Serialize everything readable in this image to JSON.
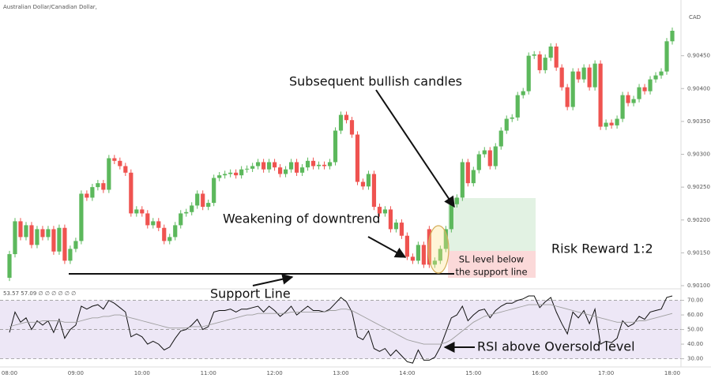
{
  "chart_data": [
    {
      "type": "candlestick",
      "title": "Australian Dollar/Canadian Dollar,",
      "price_label": "CAD",
      "categories": [
        "08:00",
        null,
        null,
        null,
        null,
        null,
        null,
        null,
        null,
        null,
        null,
        null,
        "09:00",
        null,
        null,
        null,
        null,
        null,
        null,
        null,
        null,
        null,
        null,
        null,
        "10:00",
        null,
        null,
        null,
        null,
        null,
        null,
        null,
        null,
        null,
        null,
        null,
        "11:00",
        null,
        null,
        null,
        null,
        null,
        null,
        null,
        null,
        null,
        null,
        null,
        "12:00",
        null,
        null,
        null,
        null,
        null,
        null,
        null,
        null,
        null,
        null,
        null,
        "13:00",
        null,
        null,
        null,
        null,
        null,
        null,
        null,
        null,
        null,
        null,
        null,
        "14:00",
        null,
        null,
        null,
        null,
        null,
        null,
        null,
        null,
        null,
        null,
        null,
        "15:00",
        null,
        null,
        null,
        null,
        null,
        null,
        null,
        null,
        null,
        null,
        null,
        "16:00",
        null,
        null,
        null,
        null,
        null,
        null,
        null,
        null,
        null,
        null,
        null,
        "17:00",
        null,
        null,
        null,
        null,
        null,
        null,
        null,
        null,
        null,
        null,
        null,
        "18:00"
      ],
      "open": [
        0.90112,
        0.90148,
        0.90198,
        0.90174,
        0.90192,
        0.90162,
        0.90186,
        0.90174,
        0.90186,
        0.90152,
        0.90188,
        0.90138,
        0.90156,
        0.90168,
        0.9024,
        0.90234,
        0.9025,
        0.90256,
        0.90246,
        0.90294,
        0.9029,
        0.90282,
        0.90272,
        0.9021,
        0.90216,
        0.9021,
        0.90192,
        0.90198,
        0.90188,
        0.90168,
        0.90174,
        0.90192,
        0.9021,
        0.90212,
        0.90222,
        0.9024,
        0.9022,
        0.90226,
        0.90264,
        0.90268,
        0.9027,
        0.90272,
        0.90268,
        0.90277,
        0.90278,
        0.90282,
        0.90288,
        0.90277,
        0.90288,
        0.9028,
        0.9027,
        0.90277,
        0.90288,
        0.90272,
        0.9028,
        0.9029,
        0.90282,
        0.90284,
        0.90282,
        0.90288,
        0.90336,
        0.9036,
        0.90352,
        0.9033,
        0.90258,
        0.90251,
        0.9027,
        0.9022,
        0.9021,
        0.90216,
        0.90186,
        0.90196,
        0.90176,
        0.90144,
        0.90138,
        0.90162,
        0.90186,
        0.90132,
        0.90138,
        0.90156,
        0.90186,
        0.90224,
        0.90234,
        0.90288,
        0.90256,
        0.90276,
        0.903,
        0.90306,
        0.90282,
        0.90312,
        0.90336,
        0.90354,
        0.90356,
        0.9039,
        0.90396,
        0.9045,
        0.90452,
        0.90428,
        0.90447,
        0.90464,
        0.90432,
        0.90402,
        0.90372,
        0.90426,
        0.90414,
        0.90432,
        0.90402,
        0.90438,
        0.90342,
        0.90348,
        0.90344,
        0.90354,
        0.9039,
        0.90378,
        0.90384,
        0.90402,
        0.90396,
        0.90414,
        0.9042,
        0.90426,
        0.90472
      ],
      "high": [
        0.90153,
        0.90203,
        0.90203,
        0.90197,
        0.90197,
        0.90191,
        0.90191,
        0.90191,
        0.90191,
        0.90193,
        0.90193,
        0.90161,
        0.90173,
        0.90245,
        0.90245,
        0.90255,
        0.90261,
        0.90261,
        0.90299,
        0.90299,
        0.90295,
        0.90287,
        0.90277,
        0.90221,
        0.90221,
        0.90215,
        0.90203,
        0.90203,
        0.90193,
        0.90179,
        0.90197,
        0.90215,
        0.90217,
        0.90227,
        0.90245,
        0.90245,
        0.90231,
        0.90269,
        0.90273,
        0.90275,
        0.90277,
        0.90277,
        0.90282,
        0.90283,
        0.90287,
        0.90293,
        0.90293,
        0.90293,
        0.90293,
        0.90285,
        0.90282,
        0.90293,
        0.90293,
        0.90285,
        0.90295,
        0.90295,
        0.90289,
        0.90289,
        0.90293,
        0.90341,
        0.90365,
        0.90365,
        0.90357,
        0.90335,
        0.90263,
        0.90275,
        0.90275,
        0.90225,
        0.90221,
        0.90221,
        0.90201,
        0.90201,
        0.90181,
        0.90149,
        0.90167,
        0.90167,
        0.90191,
        0.90143,
        0.90161,
        0.90191,
        0.90229,
        0.90239,
        0.90293,
        0.90293,
        0.90281,
        0.90305,
        0.90311,
        0.90311,
        0.90317,
        0.90341,
        0.90359,
        0.90361,
        0.90395,
        0.90401,
        0.90455,
        0.90457,
        0.90457,
        0.90452,
        0.90469,
        0.90469,
        0.90437,
        0.90407,
        0.90431,
        0.90431,
        0.90437,
        0.90437,
        0.90443,
        0.90443,
        0.90353,
        0.90353,
        0.90359,
        0.90395,
        0.90395,
        0.90389,
        0.90407,
        0.90407,
        0.90419,
        0.90425,
        0.90431,
        0.90477,
        0.90493
      ],
      "low": [
        0.90107,
        0.90143,
        0.90169,
        0.90169,
        0.90157,
        0.90157,
        0.90169,
        0.90169,
        0.90147,
        0.90147,
        0.90133,
        0.90133,
        0.90151,
        0.90163,
        0.90229,
        0.90229,
        0.90245,
        0.90241,
        0.90241,
        0.90285,
        0.90277,
        0.90267,
        0.90205,
        0.90205,
        0.90205,
        0.90187,
        0.90187,
        0.90183,
        0.90163,
        0.90163,
        0.90169,
        0.90187,
        0.90205,
        0.90207,
        0.90217,
        0.90215,
        0.90215,
        0.90221,
        0.90259,
        0.90263,
        0.90265,
        0.90263,
        0.90263,
        0.90272,
        0.90273,
        0.90277,
        0.90272,
        0.90272,
        0.90275,
        0.90265,
        0.90265,
        0.90272,
        0.90267,
        0.90267,
        0.90275,
        0.90277,
        0.90277,
        0.90277,
        0.90277,
        0.90283,
        0.90331,
        0.90347,
        0.90325,
        0.90253,
        0.90246,
        0.90246,
        0.90215,
        0.90205,
        0.90205,
        0.90181,
        0.90181,
        0.90171,
        0.90139,
        0.90133,
        0.90133,
        0.90127,
        0.90127,
        0.90127,
        0.90133,
        0.90151,
        0.90181,
        0.90219,
        0.90229,
        0.90251,
        0.90251,
        0.90271,
        0.90295,
        0.90277,
        0.90277,
        0.90307,
        0.90331,
        0.90349,
        0.90351,
        0.90385,
        0.90391,
        0.90445,
        0.90423,
        0.90423,
        0.90442,
        0.90427,
        0.90397,
        0.90367,
        0.90367,
        0.90409,
        0.90409,
        0.90397,
        0.90397,
        0.90337,
        0.90337,
        0.90339,
        0.90339,
        0.90349,
        0.90373,
        0.90373,
        0.90379,
        0.90391,
        0.90391,
        0.90409,
        0.90415,
        0.90421,
        0.90467
      ],
      "close": [
        0.90148,
        0.90198,
        0.90174,
        0.90192,
        0.90162,
        0.90186,
        0.90174,
        0.90186,
        0.90152,
        0.90188,
        0.90138,
        0.90156,
        0.90168,
        0.9024,
        0.90234,
        0.9025,
        0.90256,
        0.90246,
        0.90294,
        0.9029,
        0.90282,
        0.90272,
        0.9021,
        0.90216,
        0.9021,
        0.90192,
        0.90198,
        0.90188,
        0.90168,
        0.90174,
        0.90192,
        0.9021,
        0.90212,
        0.90222,
        0.9024,
        0.9022,
        0.90226,
        0.90264,
        0.90268,
        0.9027,
        0.90272,
        0.90268,
        0.90277,
        0.90278,
        0.90282,
        0.90288,
        0.90277,
        0.90288,
        0.9028,
        0.9027,
        0.90277,
        0.90288,
        0.90272,
        0.9028,
        0.9029,
        0.90282,
        0.90284,
        0.90282,
        0.90288,
        0.90336,
        0.9036,
        0.90352,
        0.9033,
        0.90258,
        0.90251,
        0.9027,
        0.9022,
        0.9021,
        0.90216,
        0.90186,
        0.90196,
        0.90176,
        0.90144,
        0.90138,
        0.90162,
        0.90132,
        0.90132,
        0.90138,
        0.90156,
        0.90186,
        0.90224,
        0.90234,
        0.90288,
        0.90256,
        0.90276,
        0.903,
        0.90306,
        0.90282,
        0.90312,
        0.90336,
        0.90354,
        0.90356,
        0.9039,
        0.90396,
        0.9045,
        0.90452,
        0.90428,
        0.90447,
        0.90464,
        0.90432,
        0.90402,
        0.90372,
        0.90426,
        0.90414,
        0.90432,
        0.90402,
        0.90438,
        0.90342,
        0.90348,
        0.90344,
        0.90354,
        0.9039,
        0.90378,
        0.90384,
        0.90402,
        0.90396,
        0.90414,
        0.9042,
        0.90426,
        0.90472,
        0.90488
      ],
      "up_color": "#5cb85c",
      "down_color": "#ef5350",
      "ylim": [
        0.901,
        0.905
      ],
      "yticks": [
        {
          "value": 0.901,
          "label": "0.90100"
        },
        {
          "value": 0.9015,
          "label": "0.90150"
        },
        {
          "value": 0.902,
          "label": "0.90200"
        },
        {
          "value": 0.9025,
          "label": "0.90250"
        },
        {
          "value": 0.903,
          "label": "0.90300"
        },
        {
          "value": 0.9035,
          "label": "0.90350"
        },
        {
          "value": 0.904,
          "label": "0.90400"
        },
        {
          "value": 0.9045,
          "label": "0.90450"
        }
      ],
      "grid": false,
      "annotations": [
        "Subsequent bullish candles",
        "Weakening of downtrend",
        "Support Line",
        "Risk Reward 1:2",
        "SL level below",
        "the support line",
        "RSI above Oversold level"
      ]
    },
    {
      "type": "line",
      "header": "53.57  57.09  ∅ ∅ ∅ ∅ ∅ ∅",
      "series": [
        {
          "color": "#111111",
          "values": [
            48,
            62,
            55,
            58,
            50,
            56,
            53,
            56,
            48,
            57,
            44,
            50,
            53,
            66,
            64,
            66,
            67,
            64,
            70,
            68,
            65,
            62,
            45,
            47,
            45,
            40,
            42,
            40,
            36,
            38,
            44,
            49,
            50,
            53,
            57,
            50,
            52,
            62,
            63,
            63,
            64,
            62,
            64,
            64,
            65,
            66,
            62,
            66,
            63,
            59,
            62,
            66,
            60,
            63,
            66,
            63,
            63,
            62,
            64,
            68,
            72,
            69,
            62,
            45,
            43,
            49,
            37,
            35,
            37,
            32,
            36,
            32,
            28,
            27,
            36,
            29,
            29,
            31,
            38,
            48,
            58,
            60,
            66,
            56,
            60,
            63,
            64,
            58,
            63,
            66,
            68,
            68,
            70,
            71,
            73,
            73,
            65,
            69,
            72,
            62,
            54,
            47,
            62,
            58,
            63,
            54,
            64,
            40,
            42,
            41,
            44,
            56,
            52,
            54,
            59,
            57,
            62,
            63,
            64,
            72,
            73
          ]
        },
        {
          "color": "#9e9e9e",
          "values": [
            52,
            53,
            54,
            55,
            55,
            55,
            56,
            56,
            56,
            56,
            55,
            55,
            55,
            56,
            57,
            58,
            58,
            59,
            59,
            60,
            60,
            59,
            58,
            57,
            56,
            55,
            54,
            53,
            52,
            51,
            51,
            51,
            51,
            52,
            52,
            52,
            53,
            54,
            55,
            56,
            57,
            58,
            59,
            60,
            60,
            61,
            61,
            61,
            61,
            61,
            61,
            62,
            62,
            62,
            62,
            62,
            62,
            62,
            63,
            63,
            64,
            64,
            63,
            61,
            59,
            57,
            55,
            53,
            51,
            49,
            47,
            45,
            43,
            42,
            41,
            40,
            40,
            40,
            40,
            41,
            43,
            46,
            49,
            52,
            55,
            57,
            59,
            60,
            61,
            62,
            63,
            64,
            65,
            66,
            67,
            67,
            67,
            67,
            67,
            66,
            65,
            64,
            63,
            62,
            61,
            60,
            59,
            58,
            57,
            56,
            55,
            55,
            55,
            55,
            56,
            56,
            57,
            58,
            59,
            60,
            61
          ]
        }
      ],
      "ylim": [
        26,
        73
      ],
      "yticks": [
        {
          "value": 30,
          "label": "30.00"
        },
        {
          "value": 40,
          "label": "40.00"
        },
        {
          "value": 50,
          "label": "50.00"
        },
        {
          "value": 60,
          "label": "60.00"
        },
        {
          "value": 70,
          "label": "70.00"
        }
      ],
      "levels": [
        70,
        50,
        30
      ],
      "band_color": "#ede7f6"
    }
  ]
}
